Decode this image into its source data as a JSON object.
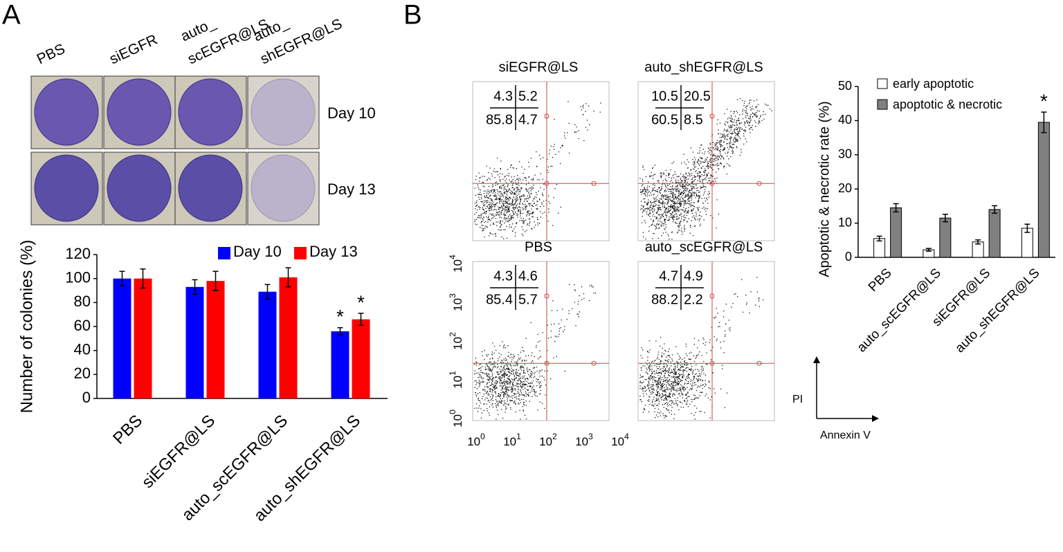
{
  "panel_labels": [
    "A",
    "B"
  ],
  "plates": {
    "columns": [
      [
        "PBS"
      ],
      [
        "siEGFR"
      ],
      [
        "auto_",
        "scEGFR@LS"
      ],
      [
        "auto_",
        "shEGFR@LS"
      ]
    ],
    "rows": [
      "Day 10",
      "Day 13"
    ]
  },
  "flow": {
    "plots": [
      {
        "title": "siEGFR@LS",
        "quadrants": [
          4.3,
          5.2,
          85.8,
          4.7
        ]
      },
      {
        "title": "auto_shEGFR@LS",
        "quadrants": [
          10.5,
          20.5,
          60.5,
          8.5
        ]
      },
      {
        "title": "PBS",
        "quadrants": [
          4.3,
          4.6,
          85.4,
          5.7
        ]
      },
      {
        "title": "auto_scEGFR@LS",
        "quadrants": [
          4.7,
          4.9,
          88.2,
          2.2
        ]
      }
    ],
    "ticks": [
      {
        "base": "10",
        "exp": "0"
      },
      {
        "base": "10",
        "exp": "1"
      },
      {
        "base": "10",
        "exp": "2"
      },
      {
        "base": "10",
        "exp": "3"
      },
      {
        "base": "10",
        "exp": "4"
      }
    ],
    "y_label": "PI",
    "x_label": "Annexin V"
  },
  "chart_data": [
    {
      "type": "bar",
      "y_label": "Number of colonies (%)",
      "categories": [
        "PBS",
        "siEGFR@LS",
        "auto_scEGFR@LS",
        "auto_shEGFR@LS"
      ],
      "series": [
        {
          "name": "Day 10",
          "color": "#0000ff",
          "values": [
            100,
            93,
            89,
            56
          ],
          "errors": [
            6,
            6,
            6,
            3
          ],
          "labels": [
            null,
            null,
            null,
            "*"
          ]
        },
        {
          "name": "Day 13",
          "color": "#ff0000",
          "values": [
            100,
            98,
            101,
            66
          ],
          "errors": [
            8,
            8,
            8,
            5
          ],
          "labels": [
            null,
            null,
            null,
            "*"
          ]
        }
      ],
      "ylim": [
        0,
        120
      ],
      "yticks": [
        0,
        20,
        40,
        60,
        80,
        100,
        120
      ],
      "legend": "top-right"
    },
    {
      "type": "bar",
      "y_label": "Apoptotic & necrotic rate (%)",
      "categories": [
        "PBS",
        "auto_scEGFR@LS",
        "siEGFR@LS",
        "auto_shEGFR@LS"
      ],
      "series": [
        {
          "name": "early apoptotic",
          "color": "#ffffff",
          "values": [
            5.5,
            2.2,
            4.5,
            8.5
          ],
          "errors": [
            0.7,
            0.4,
            0.6,
            1.2
          ],
          "labels": [
            null,
            null,
            null,
            null
          ]
        },
        {
          "name": "apoptotic & necrotic",
          "color": "#808080",
          "values": [
            14.5,
            11.5,
            14,
            39.5
          ],
          "errors": [
            1.2,
            1.1,
            1.1,
            3
          ],
          "labels": [
            null,
            null,
            null,
            "*"
          ]
        }
      ],
      "ylim": [
        0,
        50
      ],
      "yticks": [
        0,
        10,
        20,
        30,
        40,
        50
      ],
      "legend": "top-left"
    }
  ]
}
